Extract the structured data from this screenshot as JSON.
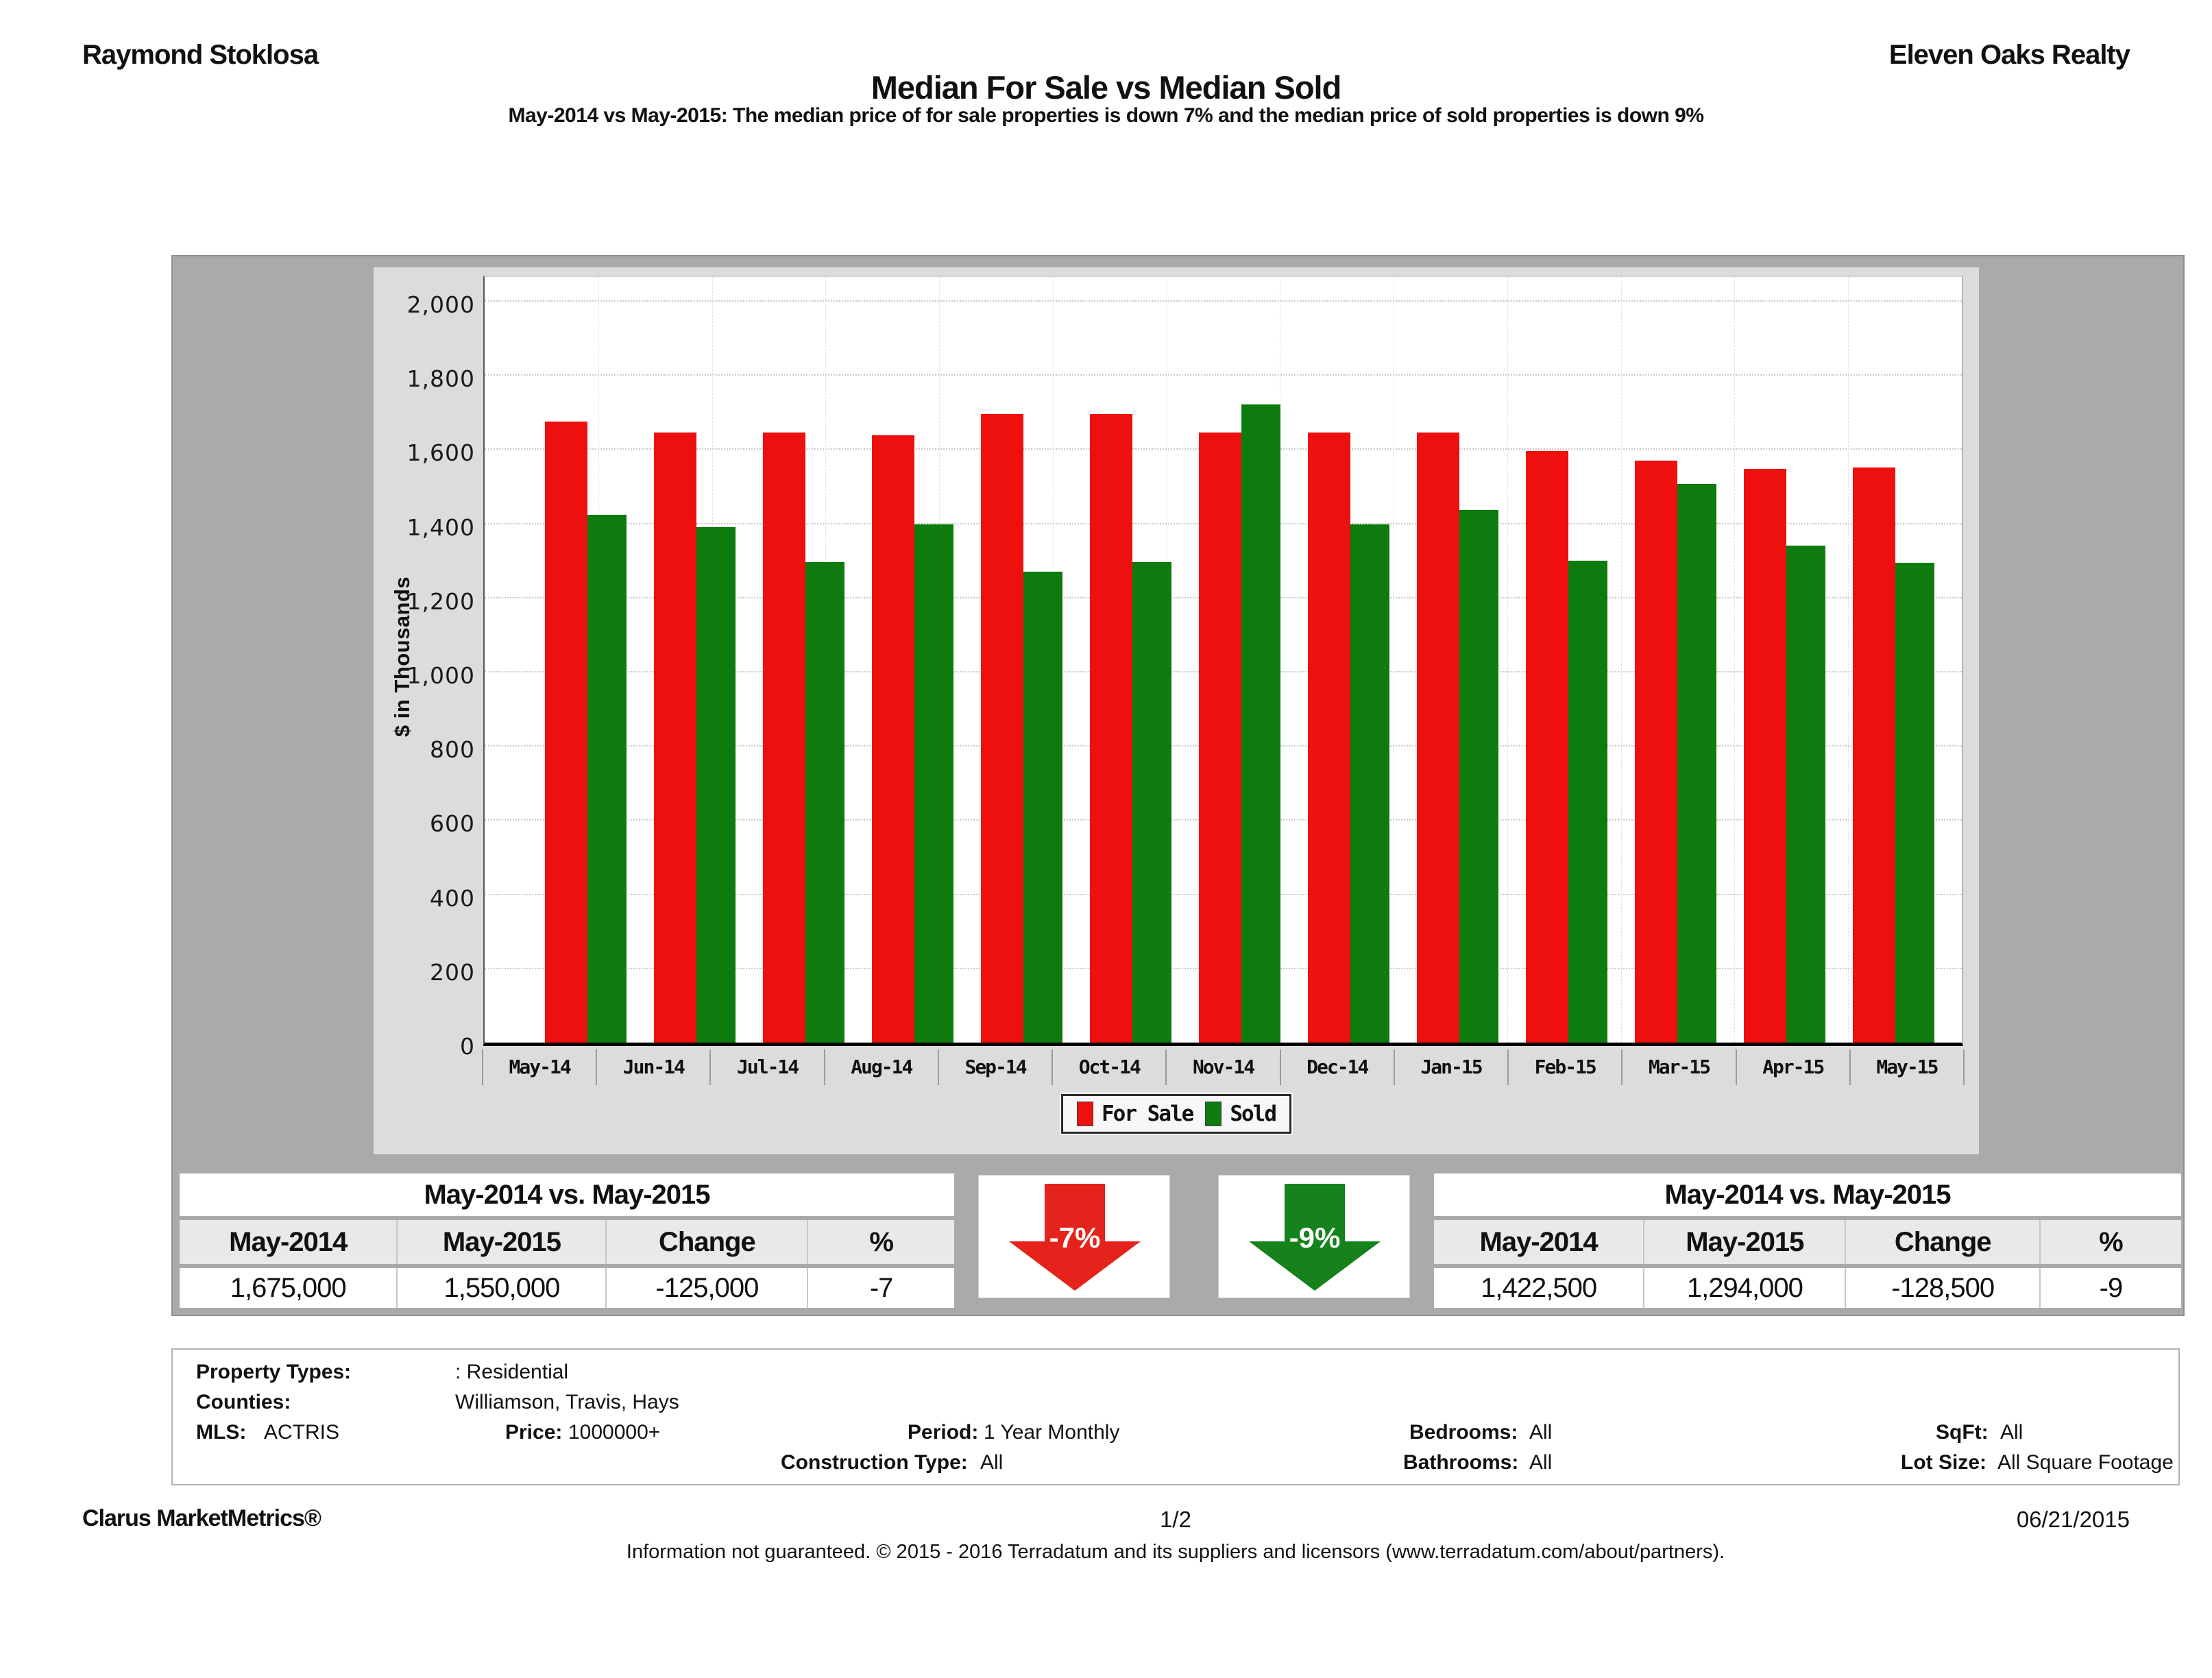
{
  "header": {
    "agent": "Raymond Stoklosa",
    "company": "Eleven Oaks Realty"
  },
  "title": "Median For Sale vs Median Sold",
  "subtitle": "May-2014 vs May-2015: The median price of for sale properties is down 7% and the median price of sold properties is down 9%",
  "chart_data": {
    "type": "bar",
    "categories": [
      "May-14",
      "Jun-14",
      "Jul-14",
      "Aug-14",
      "Sep-14",
      "Oct-14",
      "Nov-14",
      "Dec-14",
      "Jan-15",
      "Feb-15",
      "Mar-15",
      "Apr-15",
      "May-15"
    ],
    "series": [
      {
        "name": "For Sale",
        "color": "#ee0f0f",
        "values": [
          1675,
          1645,
          1645,
          1637,
          1695,
          1695,
          1645,
          1645,
          1645,
          1595,
          1570,
          1548,
          1550
        ]
      },
      {
        "name": "Sold",
        "color": "#0e7b0e",
        "values": [
          1422.5,
          1390,
          1295,
          1397,
          1270,
          1295,
          1720,
          1397,
          1437,
          1300,
          1507,
          1340,
          1294
        ]
      }
    ],
    "title": "Median For Sale vs Median Sold",
    "xlabel": "",
    "ylabel": "$ in Thousands",
    "ylim": [
      0,
      2000
    ],
    "ytick_values": [
      0,
      200,
      400,
      600,
      800,
      1000,
      1200,
      1400,
      1600,
      1800,
      2000
    ],
    "grid": true,
    "legend_position": "bottom-center"
  },
  "comparison_left": {
    "title": "May-2014 vs. May-2015",
    "columns": [
      "May-2014",
      "May-2015",
      "Change",
      "%"
    ],
    "values": [
      "1,675,000",
      "1,550,000",
      "-125,000",
      "-7"
    ]
  },
  "comparison_right": {
    "title": "May-2014 vs. May-2015",
    "columns": [
      "May-2014",
      "May-2015",
      "Change",
      "%"
    ],
    "values": [
      "1,422,500",
      "1,294,000",
      "-128,500",
      "-9"
    ]
  },
  "arrows": [
    {
      "label": "-7%",
      "color": "#e4231c",
      "direction": "down"
    },
    {
      "label": "-9%",
      "color": "#15821c",
      "direction": "down"
    }
  ],
  "filters": {
    "property_types_label": "Property Types:",
    "property_types": ": Residential",
    "counties_label": "Counties:",
    "counties": "Williamson, Travis, Hays",
    "mls_label": "MLS:",
    "mls": "ACTRIS",
    "price_label": "Price:",
    "price": "1000000+",
    "period_label": "Period:",
    "period": "1 Year Monthly",
    "construction_label": "Construction Type:",
    "construction": "All",
    "bedrooms_label": "Bedrooms:",
    "bedrooms": "All",
    "bathrooms_label": "Bathrooms:",
    "bathrooms": "All",
    "sqft_label": "SqFt:",
    "sqft": "All",
    "lot_size_label": "Lot Size:",
    "lot_size": "All Square Footage"
  },
  "footer": {
    "brand": "Clarus MarketMetrics®",
    "page_number": "1/2",
    "date": "06/21/2015",
    "disclaimer": "Information not guaranteed. © 2015 - 2016 Terradatum and its suppliers and licensors (www.terradatum.com/about/partners)."
  }
}
